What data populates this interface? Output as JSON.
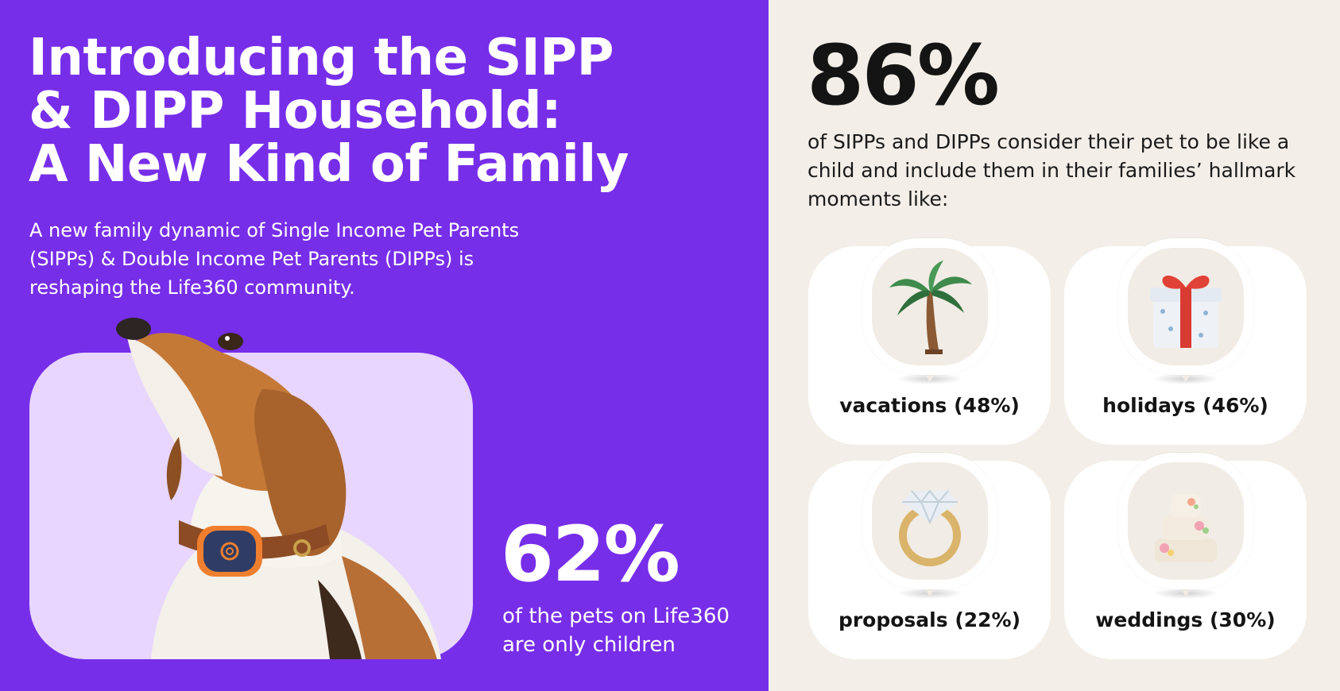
{
  "left_panel": {
    "title_lines": [
      "Introducing the SIPP",
      "& DIPP Household:",
      "A New Kind of Family"
    ],
    "subtitle_lines": [
      "A new family dynamic of  Single Income Pet Parents",
      "(SIPPs) & Double Income Pet Parents (DIPPs) is",
      "reshaping the Life360 community."
    ],
    "stat": {
      "value": "62%",
      "caption_lines": [
        "of the pets on Life360",
        "are only children"
      ]
    },
    "colors": {
      "background": "#772ee9",
      "card": "#e8d6fe",
      "text": "#ffffff"
    }
  },
  "right_panel": {
    "stat": {
      "value": "86%",
      "description_lines": [
        "of SIPPs and DIPPs consider their pet to be like a",
        "child and include them in their families’ hallmark",
        "moments like:"
      ]
    },
    "moments": [
      {
        "label": "vacations (48%)",
        "icon": "palm-tree-icon"
      },
      {
        "label": "holidays (46%)",
        "icon": "gift-box-icon"
      },
      {
        "label": "proposals (22%)",
        "icon": "diamond-ring-icon"
      },
      {
        "label": "weddings (30%)",
        "icon": "wedding-cake-icon"
      }
    ],
    "colors": {
      "background": "#f3efe8",
      "card": "#ffffff",
      "text": "#141414"
    }
  }
}
